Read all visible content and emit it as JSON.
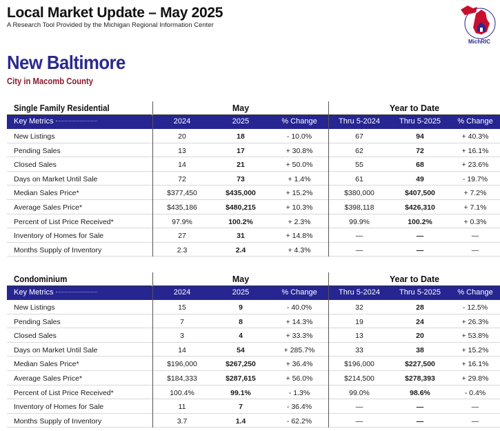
{
  "header": {
    "title": "Local Market Update – May 2025",
    "subtitle": "A Research Tool Provided by the Michigan Regional Information Center",
    "logo_text": "MichRIC",
    "logo_ring_text": "Michigan Regional Information Center"
  },
  "location": {
    "city": "New Baltimore",
    "county": "City in Macomb County"
  },
  "colors": {
    "navy": "#262592",
    "maroon": "#8b1a2e",
    "logo_red": "#c8102e"
  },
  "sections": [
    {
      "title": "Single Family Residential",
      "group_month": "May",
      "group_ytd": "Year to Date",
      "columns": [
        "Key Metrics",
        "2024",
        "2025",
        "% Change",
        "Thru 5-2024",
        "Thru 5-2025",
        "% Change"
      ],
      "rows": [
        [
          "New Listings",
          "20",
          "18",
          "- 10.0%",
          "67",
          "94",
          "+ 40.3%"
        ],
        [
          "Pending Sales",
          "13",
          "17",
          "+ 30.8%",
          "62",
          "72",
          "+ 16.1%"
        ],
        [
          "Closed Sales",
          "14",
          "21",
          "+ 50.0%",
          "55",
          "68",
          "+ 23.6%"
        ],
        [
          "Days on Market Until Sale",
          "72",
          "73",
          "+ 1.4%",
          "61",
          "49",
          "- 19.7%"
        ],
        [
          "Median Sales Price*",
          "$377,450",
          "$435,000",
          "+ 15.2%",
          "$380,000",
          "$407,500",
          "+ 7.2%"
        ],
        [
          "Average Sales Price*",
          "$435,186",
          "$480,215",
          "+ 10.3%",
          "$398,118",
          "$426,310",
          "+ 7.1%"
        ],
        [
          "Percent of List Price Received*",
          "97.9%",
          "100.2%",
          "+ 2.3%",
          "99.9%",
          "100.2%",
          "+ 0.3%"
        ],
        [
          "Inventory of Homes for Sale",
          "27",
          "31",
          "+ 14.8%",
          "—",
          "—",
          "—"
        ],
        [
          "Months Supply of Inventory",
          "2.3",
          "2.4",
          "+ 4.3%",
          "—",
          "—",
          "—"
        ]
      ]
    },
    {
      "title": "Condominium",
      "group_month": "May",
      "group_ytd": "Year to Date",
      "columns": [
        "Key Metrics",
        "2024",
        "2025",
        "% Change",
        "Thru 5-2024",
        "Thru 5-2025",
        "% Change"
      ],
      "rows": [
        [
          "New Listings",
          "15",
          "9",
          "- 40.0%",
          "32",
          "28",
          "- 12.5%"
        ],
        [
          "Pending Sales",
          "7",
          "8",
          "+ 14.3%",
          "19",
          "24",
          "+ 26.3%"
        ],
        [
          "Closed Sales",
          "3",
          "4",
          "+ 33.3%",
          "13",
          "20",
          "+ 53.8%"
        ],
        [
          "Days on Market Until Sale",
          "14",
          "54",
          "+ 285.7%",
          "33",
          "38",
          "+ 15.2%"
        ],
        [
          "Median Sales Price*",
          "$196,000",
          "$267,250",
          "+ 36.4%",
          "$196,000",
          "$227,500",
          "+ 16.1%"
        ],
        [
          "Average Sales Price*",
          "$184,333",
          "$287,615",
          "+ 56.0%",
          "$214,500",
          "$278,393",
          "+ 29.8%"
        ],
        [
          "Percent of List Price Received*",
          "100.4%",
          "99.1%",
          "- 1.3%",
          "99.0%",
          "98.6%",
          "- 0.4%"
        ],
        [
          "Inventory of Homes for Sale",
          "11",
          "7",
          "- 36.4%",
          "—",
          "—",
          "—"
        ],
        [
          "Months Supply of Inventory",
          "3.7",
          "1.4",
          "- 62.2%",
          "—",
          "—",
          "—"
        ]
      ]
    }
  ]
}
